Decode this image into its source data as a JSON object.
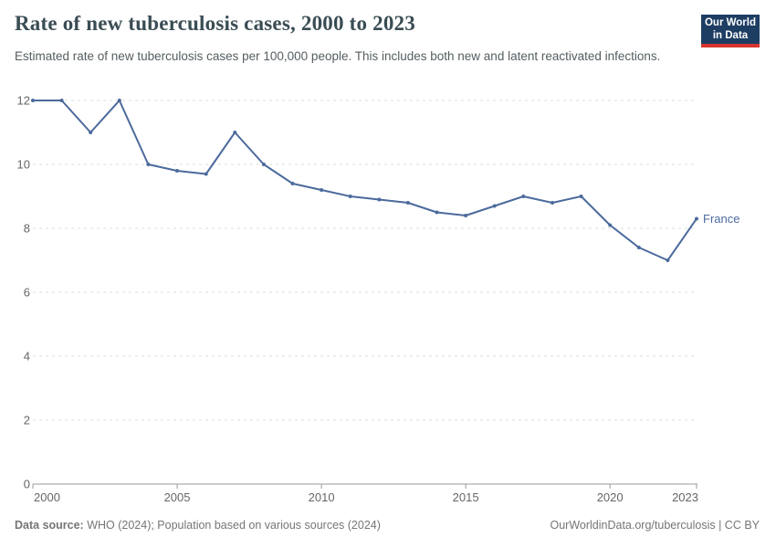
{
  "header": {
    "title": "Rate of new tuberculosis cases, 2000 to 2023",
    "subtitle": "Estimated rate of new tuberculosis cases per 100,000 people. This includes both new and latent reactivated infections."
  },
  "logo": {
    "line1": "Our World",
    "line2": "in Data",
    "bg_color": "#1d3d63",
    "bar_color": "#d8352e"
  },
  "chart_data": {
    "type": "line",
    "title": "Rate of new tuberculosis cases, 2000 to 2023",
    "xlabel": "",
    "ylabel": "",
    "x": [
      2000,
      2001,
      2002,
      2003,
      2004,
      2005,
      2006,
      2007,
      2008,
      2009,
      2010,
      2011,
      2012,
      2013,
      2014,
      2015,
      2016,
      2017,
      2018,
      2019,
      2020,
      2021,
      2022,
      2023
    ],
    "series": [
      {
        "name": "France",
        "color": "#4C6A9C",
        "values": [
          12,
          12,
          11,
          12,
          10,
          9.8,
          9.7,
          11,
          10,
          9.4,
          9.2,
          9,
          8.9,
          8.8,
          8.5,
          8.4,
          8.7,
          9,
          8.8,
          9,
          8.1,
          7.4,
          7,
          8.3
        ]
      }
    ],
    "ylim": [
      0,
      12
    ],
    "yticks": [
      0,
      2,
      4,
      6,
      8,
      10,
      12
    ],
    "xticks": [
      2000,
      2005,
      2010,
      2015,
      2020,
      2023
    ],
    "grid": "horizontal-dashed",
    "legend_position": "end-of-line-label",
    "colors": {
      "gridline": "#dddddd",
      "axis": "#999999",
      "tick_label": "#666666"
    }
  },
  "footer": {
    "source_label": "Data source:",
    "source_text": " WHO (2024); Population based on various sources (2024)",
    "right_text": "OurWorldinData.org/tuberculosis | CC BY"
  }
}
